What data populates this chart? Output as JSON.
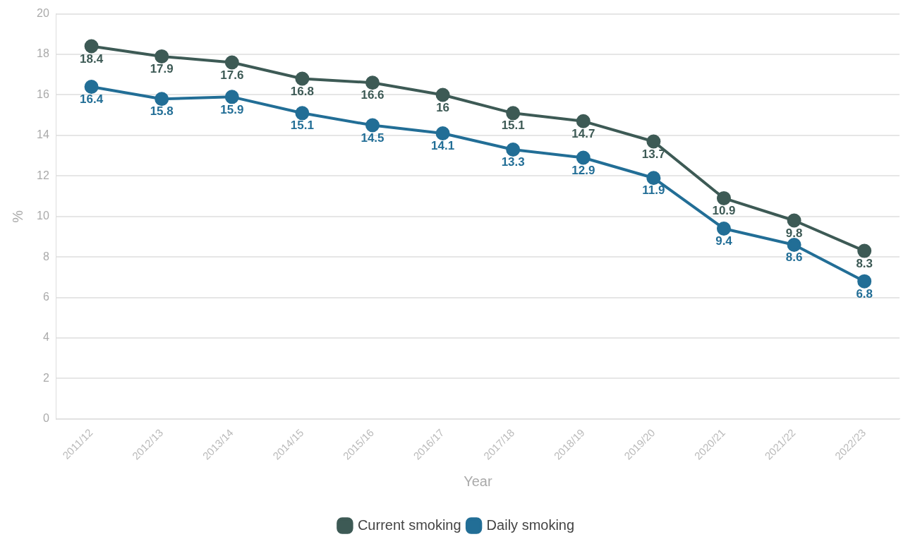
{
  "chart_data": {
    "type": "line",
    "xlabel": "Year",
    "ylabel": "%",
    "categories": [
      "2011/12",
      "2012/13",
      "2013/14",
      "2014/15",
      "2015/16",
      "2016/17",
      "2017/18",
      "2018/19",
      "2019/20",
      "2020/21",
      "2021/22",
      "2022/23"
    ],
    "series": [
      {
        "name": "Current smoking",
        "color": "#3d5a55",
        "values": [
          18.4,
          17.9,
          17.6,
          16.8,
          16.6,
          16,
          15.1,
          14.7,
          13.7,
          10.9,
          9.8,
          8.3
        ]
      },
      {
        "name": "Daily smoking",
        "color": "#226e96",
        "values": [
          16.4,
          15.8,
          15.9,
          15.1,
          14.5,
          14.1,
          13.3,
          12.9,
          11.9,
          9.4,
          8.6,
          6.8
        ]
      }
    ],
    "ylim": [
      0,
      20
    ],
    "yticks": [
      0,
      2,
      4,
      6,
      8,
      10,
      12,
      14,
      16,
      18,
      20
    ],
    "grid": "y",
    "legend": "bottom",
    "marker": "circle",
    "line_style": "solid",
    "data_labels": true
  }
}
